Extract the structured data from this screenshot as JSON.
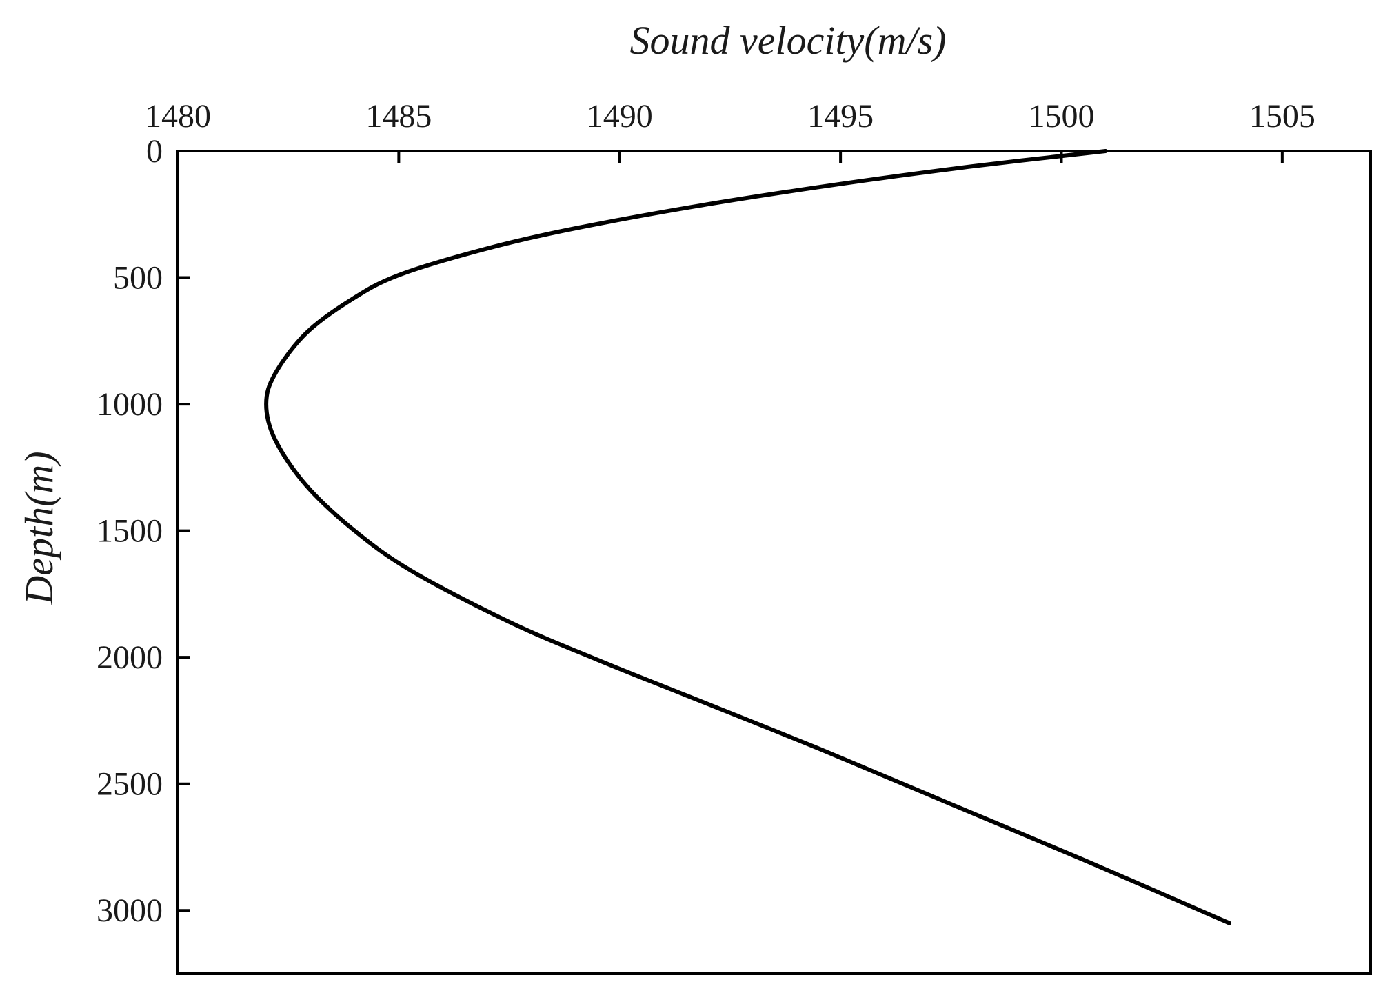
{
  "chart_data": {
    "type": "line",
    "title": "",
    "xlabel": "Sound velocity(m/s)",
    "ylabel": "Depth(m)",
    "x_axis_position": "top",
    "y_axis_inverted": true,
    "xlim": [
      1480,
      1507
    ],
    "ylim": [
      0,
      3250
    ],
    "x_ticks": [
      1480,
      1485,
      1490,
      1495,
      1500,
      1505
    ],
    "y_ticks": [
      0,
      500,
      1000,
      1500,
      2000,
      2500,
      3000
    ],
    "grid": false,
    "legend": "none",
    "line_color": "#000000",
    "series": [
      {
        "x": [
          1501.0,
          1498.0,
          1495.0,
          1492.0,
          1489.0,
          1487.0,
          1485.0,
          1483.9,
          1482.9,
          1482.2,
          1482.0,
          1482.2,
          1482.9,
          1484.0,
          1485.3,
          1487.5,
          1489.5,
          1491.5,
          1494.5,
          1497.5,
          1500.5,
          1503.8
        ],
        "y": [
          0,
          60,
          130,
          210,
          305,
          385,
          490,
          590,
          720,
          880,
          1000,
          1140,
          1320,
          1500,
          1660,
          1860,
          2010,
          2150,
          2360,
          2580,
          2800,
          3050
        ]
      }
    ]
  }
}
